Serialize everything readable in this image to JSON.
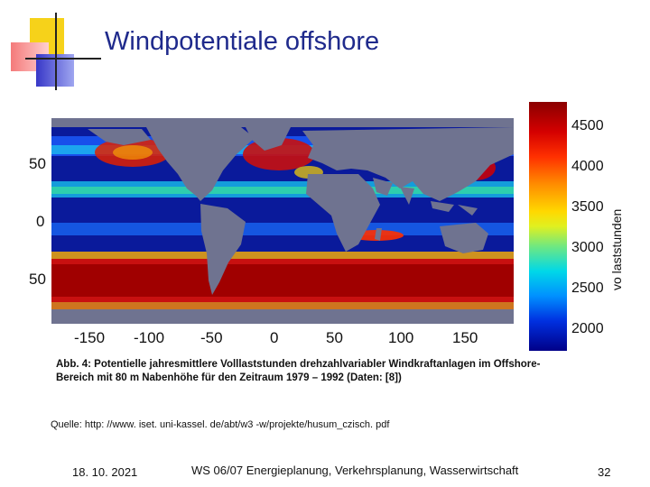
{
  "slide": {
    "title": "Windpotentiale offshore",
    "source": "Quelle: http: //www. iset. uni-kassel. de/abt/w3 -w/projekte/husum_czisch. pdf",
    "footer": {
      "date": "18. 10. 2021",
      "course": "WS 06/07 Energieplanung, Verkehrsplanung, Wasserwirtschaft",
      "page": "32"
    }
  },
  "figure": {
    "caption_line1": "Abb. 4: Potentielle jahresmittlere Volllaststunden drehzahlvariabler Windkraftanlagen im Offshore-",
    "caption_line2": "Bereich mit 80 m Nabenhöhe für den Zeitraum 1979 – 1992 (Daten: [8])",
    "lat_ticks": [
      "50",
      "0",
      "50"
    ],
    "lon_ticks": [
      "-150",
      "-100",
      "-50",
      "0",
      "50",
      "100",
      "150"
    ],
    "colorbar": {
      "ticks": [
        "4500",
        "4000",
        "3500",
        "3000",
        "2500",
        "2000"
      ],
      "unit_label": "vo laststunden",
      "colors": [
        "#8a0000",
        "#ff3000",
        "#ffd800",
        "#00d8e8",
        "#0030e0",
        "#000088"
      ]
    },
    "land_color": "#6f7390",
    "ocean_low_color": "#0a1a9b",
    "ocean_high_color": "#c81010"
  }
}
